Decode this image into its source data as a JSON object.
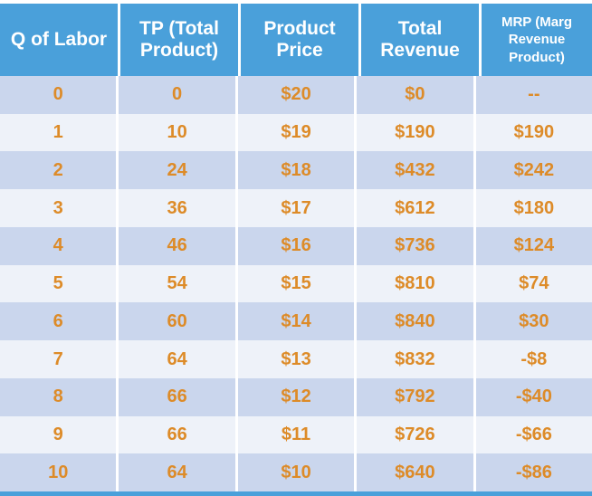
{
  "table": {
    "headers": [
      "Q of Labor",
      "TP (Total Product)",
      "Product Price",
      "Total Revenue",
      "MRP (Marg Revenue Product)"
    ],
    "rows": [
      [
        "0",
        "0",
        "$20",
        "$0",
        "--"
      ],
      [
        "1",
        "10",
        "$19",
        "$190",
        "$190"
      ],
      [
        "2",
        "24",
        "$18",
        "$432",
        "$242"
      ],
      [
        "3",
        "36",
        "$17",
        "$612",
        "$180"
      ],
      [
        "4",
        "46",
        "$16",
        "$736",
        "$124"
      ],
      [
        "5",
        "54",
        "$15",
        "$810",
        "$74"
      ],
      [
        "6",
        "60",
        "$14",
        "$840",
        "$30"
      ],
      [
        "7",
        "64",
        "$13",
        "$832",
        "-$8"
      ],
      [
        "8",
        "66",
        "$12",
        "$792",
        "-$40"
      ],
      [
        "9",
        "66",
        "$11",
        "$726",
        "-$66"
      ],
      [
        "10",
        "64",
        "$10",
        "$640",
        "-$86"
      ]
    ]
  },
  "chart_data": {
    "type": "table",
    "columns": [
      "Q of Labor",
      "TP (Total Product)",
      "Product Price",
      "Total Revenue",
      "MRP (Marg Revenue Product)"
    ],
    "q_of_labor": [
      0,
      1,
      2,
      3,
      4,
      5,
      6,
      7,
      8,
      9,
      10
    ],
    "total_product": [
      0,
      10,
      24,
      36,
      46,
      54,
      60,
      64,
      66,
      66,
      64
    ],
    "product_price": [
      20,
      19,
      18,
      17,
      16,
      15,
      14,
      13,
      12,
      11,
      10
    ],
    "total_revenue": [
      0,
      190,
      432,
      612,
      736,
      810,
      840,
      832,
      792,
      726,
      640
    ],
    "mrp": [
      null,
      190,
      242,
      180,
      124,
      74,
      30,
      -8,
      -40,
      -66,
      -86
    ]
  },
  "colors": {
    "header_bg": "#4aa0da",
    "header_text": "#ffffff",
    "row_even_bg": "#cad6ed",
    "row_odd_bg": "#eef2f9",
    "value_text": "#dd8b28"
  }
}
